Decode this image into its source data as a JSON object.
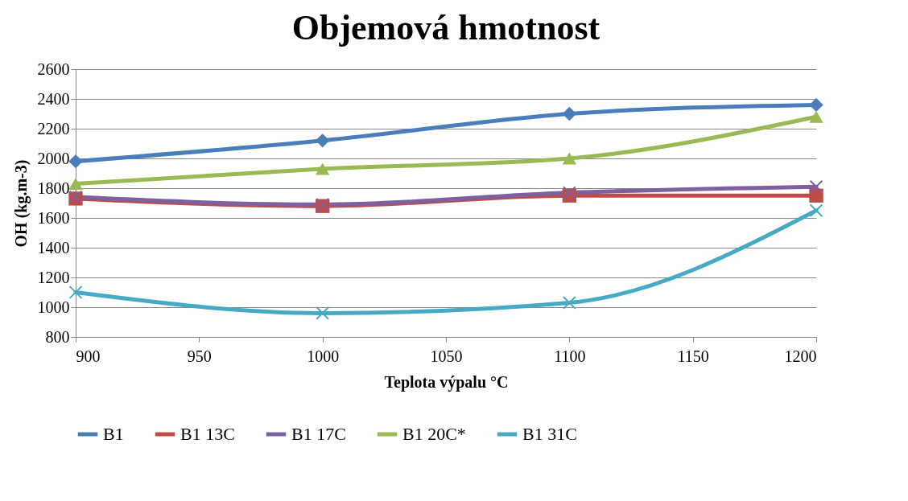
{
  "chart_data": {
    "type": "line",
    "title": "Objemová hmotnost",
    "xlabel": "Teplota výpalu °C",
    "ylabel": "OH (kg.m-3)",
    "x": [
      900,
      1000,
      1100,
      1200
    ],
    "series": [
      {
        "name": "B1",
        "color": "#4a7ebb",
        "marker": "diamond",
        "values": [
          1980,
          2120,
          2300,
          2360
        ]
      },
      {
        "name": "B1 13C",
        "color": "#be4b48",
        "marker": "square",
        "values": [
          1730,
          1680,
          1750,
          1750
        ]
      },
      {
        "name": "B1 17C",
        "color": "#7d60a0",
        "marker": "cross",
        "values": [
          1740,
          1690,
          1770,
          1810
        ]
      },
      {
        "name": "B1 20C*",
        "color": "#98b954",
        "marker": "triangle",
        "values": [
          1830,
          1930,
          2000,
          2280
        ]
      },
      {
        "name": "B1 31C",
        "color": "#46aac5",
        "marker": "cross",
        "values": [
          1100,
          960,
          1030,
          1650
        ]
      }
    ],
    "xlim": [
      900,
      1200
    ],
    "xticks": [
      900,
      950,
      1000,
      1050,
      1100,
      1150,
      1200
    ],
    "ylim": [
      800,
      2600
    ],
    "yticks": [
      800,
      1000,
      1200,
      1400,
      1600,
      1800,
      2000,
      2200,
      2400,
      2600
    ],
    "grid": "y",
    "legend": "bottom",
    "line_style": "solid"
  }
}
